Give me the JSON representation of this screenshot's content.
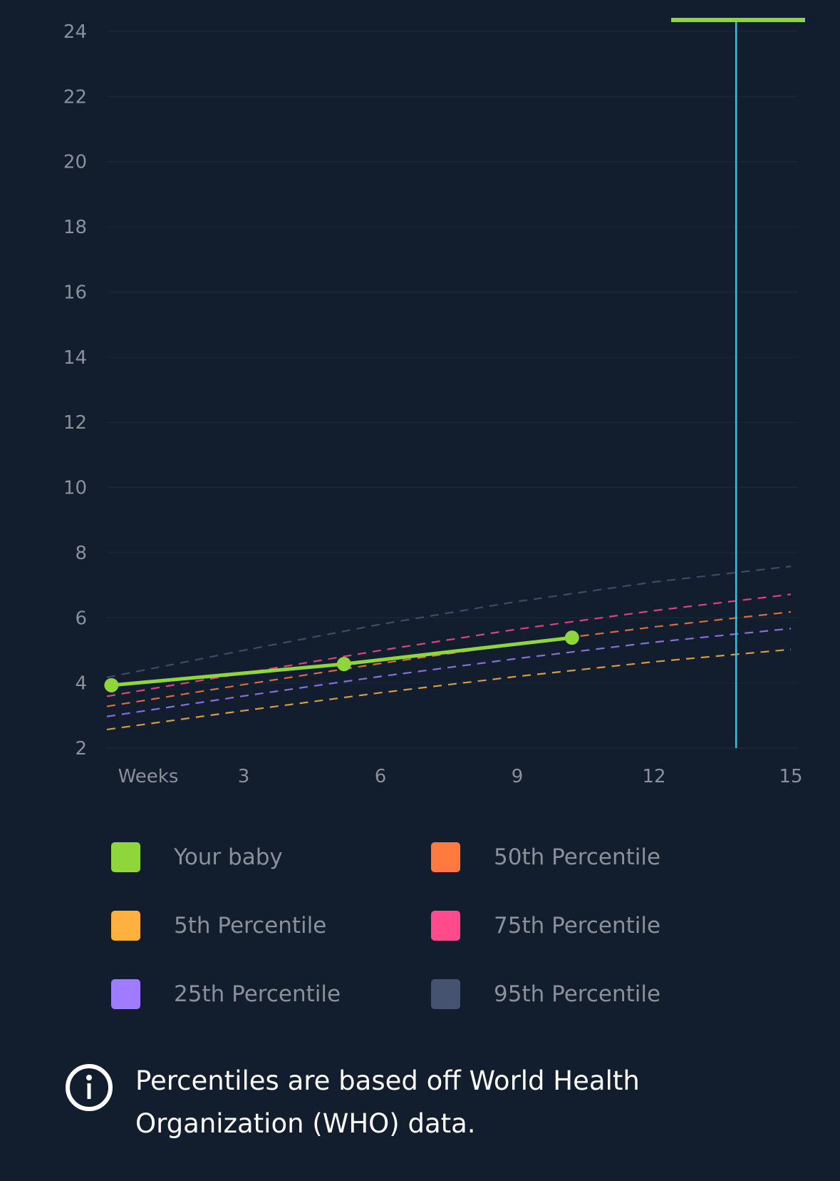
{
  "chart_data": {
    "type": "line",
    "title": "",
    "xlabel": "Weeks",
    "ylabel": "",
    "xlim": [
      0,
      15
    ],
    "ylim": [
      2,
      24
    ],
    "x_ticks": [
      3,
      6,
      9,
      12,
      15
    ],
    "y_ticks": [
      2,
      4,
      6,
      8,
      10,
      12,
      14,
      16,
      18,
      20,
      22,
      24
    ],
    "grid": true,
    "legend_position": "bottom",
    "current_week_marker": 13.8,
    "series": [
      {
        "name": "Your baby",
        "color": "#8fd63d",
        "style": "solid",
        "markers": true,
        "x": [
          0.1,
          5.2,
          10.2
        ],
        "y": [
          3.93,
          4.58,
          5.39
        ]
      },
      {
        "name": "5th Percentile",
        "color": "#ffb03f",
        "style": "dashed",
        "x": [
          0,
          3,
          6,
          9,
          12,
          15
        ],
        "y": [
          2.57,
          3.15,
          3.7,
          4.2,
          4.65,
          5.03
        ]
      },
      {
        "name": "25th Percentile",
        "color": "#9f7bff",
        "style": "dashed",
        "x": [
          0,
          3,
          6,
          9,
          12,
          15
        ],
        "y": [
          2.97,
          3.6,
          4.2,
          4.75,
          5.25,
          5.67
        ]
      },
      {
        "name": "50th Percentile",
        "color": "#ff7a3d",
        "style": "dashed",
        "x": [
          0,
          3,
          6,
          9,
          12,
          15
        ],
        "y": [
          3.28,
          3.95,
          4.6,
          5.2,
          5.72,
          6.18
        ]
      },
      {
        "name": "75th Percentile",
        "color": "#ff4a8b",
        "style": "dashed",
        "x": [
          0,
          3,
          6,
          9,
          12,
          15
        ],
        "y": [
          3.59,
          4.3,
          5.0,
          5.65,
          6.22,
          6.72
        ]
      },
      {
        "name": "95th Percentile",
        "color": "#465370",
        "style": "dashed",
        "x": [
          0,
          3,
          6,
          9,
          12,
          15
        ],
        "y": [
          4.17,
          5.0,
          5.8,
          6.5,
          7.1,
          7.58
        ]
      }
    ]
  },
  "legend": [
    {
      "label": "Your baby",
      "color": "#8fd63d"
    },
    {
      "label": "50th Percentile",
      "color": "#ff7a3d"
    },
    {
      "label": "5th Percentile",
      "color": "#ffb03f"
    },
    {
      "label": "75th Percentile",
      "color": "#ff4a8b"
    },
    {
      "label": "25th Percentile",
      "color": "#9f7bff"
    },
    {
      "label": "95th Percentile",
      "color": "#465370"
    }
  ],
  "note": {
    "icon": "info-icon",
    "text": "Percentiles are based off World Health Organization (WHO) data."
  }
}
